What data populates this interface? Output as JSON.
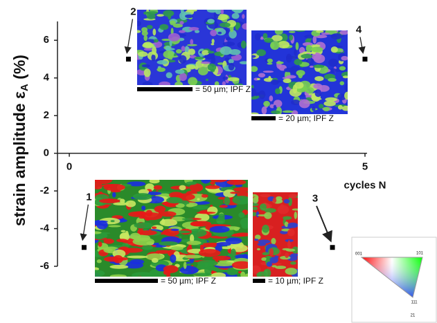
{
  "chart_data": {
    "type": "scatter",
    "ylabel": {
      "main": "strain amplitude ε",
      "subscript": "A",
      "suffix": " (%)"
    },
    "xlabel": "cycles N",
    "xlim": [
      -0.2,
      5
    ],
    "xticks": [
      0,
      5
    ],
    "ylim": [
      -6,
      7
    ],
    "yticks": [
      -6,
      -4,
      -2,
      0,
      2,
      4,
      6
    ],
    "series": [
      {
        "color": "#000000",
        "x": [
          0.25,
          1,
          4.45,
          5
        ],
        "values": [
          -5,
          5,
          -5,
          5
        ]
      }
    ],
    "point_labels": [
      "1",
      "2",
      "3",
      "4"
    ],
    "images": [
      {
        "caption": "= 50 µm; IPF Z"
      },
      {
        "caption": "= 50 µm; IPF Z"
      },
      {
        "caption": "= 10 µm; IPF Z"
      },
      {
        "caption": "= 20 µm; IPF Z"
      }
    ],
    "inset_labels": [
      "001",
      "101",
      "111",
      "21"
    ]
  }
}
